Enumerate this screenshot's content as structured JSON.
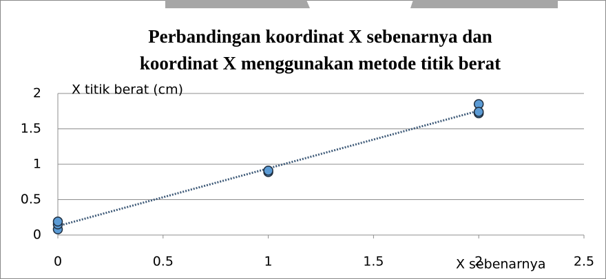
{
  "chart_data": {
    "type": "scatter",
    "title": [
      "Perbandingan koordinat X sebenarnya dan",
      "koordinat X menggunakan metode titik berat"
    ],
    "y_label": "X titik berat (cm)",
    "x_label": "X sebenarnya",
    "x": [
      0,
      0,
      0,
      1,
      1,
      2,
      2,
      2
    ],
    "values": [
      0.08,
      0.15,
      0.19,
      0.89,
      0.91,
      1.85,
      1.72,
      1.74
    ],
    "color": "#5b9bd5",
    "edge_color": "#1f2d3d",
    "trendline": "linear",
    "trendline_color": "#3e5a78",
    "xlim": [
      0,
      2.5
    ],
    "xticks": [
      0,
      0.5,
      1,
      1.5,
      2,
      2.5
    ],
    "ylim": [
      0,
      2
    ],
    "yticks": [
      0,
      0.5,
      1,
      1.5,
      2
    ],
    "grid": true
  }
}
